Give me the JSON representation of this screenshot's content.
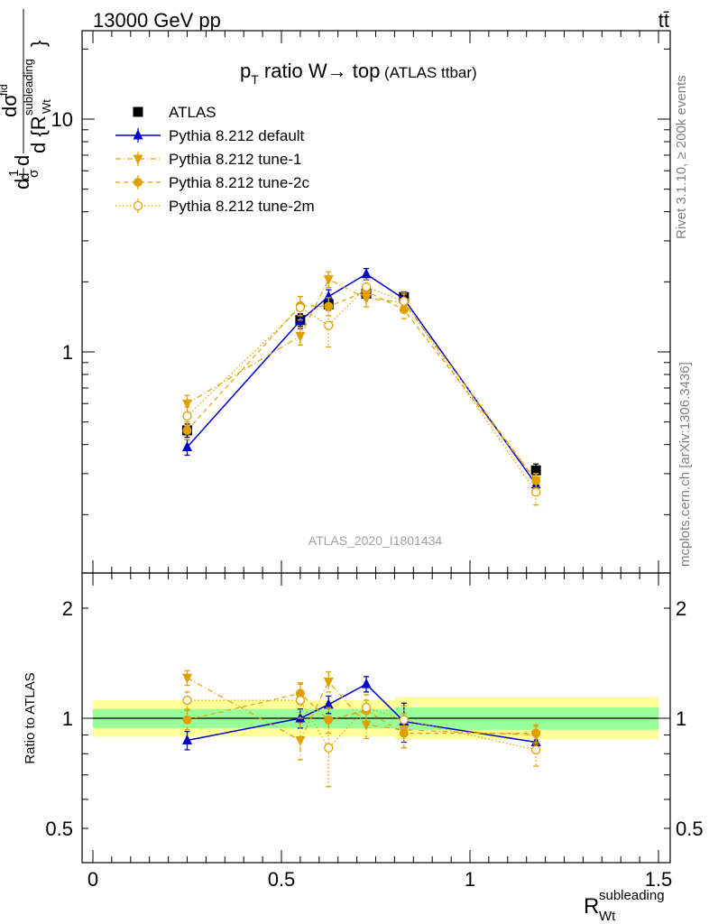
{
  "header": {
    "left": "13000 GeV pp",
    "right": "tt̄"
  },
  "title": {
    "pt": "p",
    "pt_sub": "T",
    "main": " ratio W",
    "arrow": "→",
    "tail": " top",
    "small": " (ATLAS ttbar)"
  },
  "side_labels": {
    "rivet": "Rivet 3.1.10, ≥ 200k events",
    "mcplots": "mcplots.cern.ch [arXiv:1306.3436]"
  },
  "analysis_id": "ATLAS_2020_I1801434",
  "y_label_main": {
    "frac": "d1/σdσ/d{R_Wt^subleading}",
    "parts": [
      "1",
      "σ",
      "dσ",
      "fid",
      "d {R",
      "subleading",
      "Wt",
      "}"
    ]
  },
  "y_label_ratio": "Ratio to ATLAS",
  "x_label": {
    "R": "R",
    "sup": "subleading",
    "sub": "Wt"
  },
  "colors": {
    "data": "#000000",
    "default": "#0000cc",
    "mc": "#e0a000",
    "band_inner": "#99ff99",
    "band_outer": "#ffff99"
  },
  "chart_data": [
    {
      "type": "line",
      "panel": "main",
      "y_scale": "log",
      "ylim": [
        0.18,
        25
      ],
      "xlim": [
        -0.03,
        1.53
      ],
      "y_ticks": [
        {
          "value": 1,
          "label": "1"
        },
        {
          "value": 10,
          "label": "10"
        }
      ],
      "x": [
        0.25,
        0.55,
        0.625,
        0.725,
        0.825,
        1.175
      ],
      "series": [
        {
          "name": "ATLAS",
          "style": "data",
          "marker": "square",
          "values": [
            0.46,
            1.37,
            1.6,
            1.78,
            1.72,
            0.31
          ],
          "errors": [
            0.03,
            0.08,
            0.09,
            0.09,
            0.09,
            0.02
          ]
        },
        {
          "name": "Pythia 8.212 default",
          "style": "default",
          "marker": "triangle-up",
          "values": [
            0.39,
            1.36,
            1.73,
            2.16,
            1.69,
            0.27
          ],
          "errors": [
            0.03,
            0.1,
            0.12,
            0.12,
            0.12,
            0.02
          ]
        },
        {
          "name": "Pythia 8.212 tune-1",
          "style": "dashdot",
          "marker": "triangle-down",
          "values": [
            0.6,
            1.17,
            2.05,
            1.7,
            1.63,
            0.28
          ],
          "errors": [
            0.05,
            0.1,
            0.16,
            0.14,
            0.14,
            0.02
          ]
        },
        {
          "name": "Pythia 8.212 tune-2c",
          "style": "dashed",
          "marker": "circle-filled",
          "values": [
            0.46,
            1.58,
            1.57,
            1.82,
            1.52,
            0.28
          ],
          "errors": [
            0.04,
            0.15,
            0.14,
            0.14,
            0.13,
            0.02
          ]
        },
        {
          "name": "Pythia 8.212 tune-2m",
          "style": "dotted",
          "marker": "circle-open",
          "values": [
            0.53,
            1.55,
            1.3,
            1.9,
            1.65,
            0.25
          ],
          "errors": [
            0.05,
            0.18,
            0.25,
            0.15,
            0.15,
            0.03
          ]
        }
      ]
    },
    {
      "type": "line",
      "panel": "ratio",
      "y_scale": "log",
      "ylim": [
        0.42,
        2.4
      ],
      "xlim": [
        -0.03,
        1.53
      ],
      "y_ticks": [
        {
          "value": 0.5,
          "label": "0.5"
        },
        {
          "value": 1,
          "label": "1"
        },
        {
          "value": 2,
          "label": "2"
        }
      ],
      "x_ticks": [
        {
          "value": 0,
          "label": "0"
        },
        {
          "value": 0.5,
          "label": "0.5"
        },
        {
          "value": 1,
          "label": "1"
        },
        {
          "value": 1.5,
          "label": "1.5"
        }
      ],
      "bands": [
        {
          "from": 0,
          "to": 0.8,
          "inner": [
            0.94,
            1.06
          ],
          "outer": [
            0.89,
            1.12
          ]
        },
        {
          "from": 0.8,
          "to": 1.5,
          "inner": [
            0.93,
            1.07
          ],
          "outer": [
            0.875,
            1.14
          ]
        }
      ],
      "x": [
        0.25,
        0.55,
        0.625,
        0.725,
        0.825,
        1.175
      ],
      "series": [
        {
          "name": "Pythia 8.212 default",
          "style": "default",
          "marker": "triangle-up",
          "values": [
            0.87,
            1.0,
            1.09,
            1.24,
            0.98,
            0.86
          ],
          "errors": [
            0.05,
            0.06,
            0.06,
            0.06,
            0.12,
            0.05
          ]
        },
        {
          "name": "Pythia 8.212 tune-1",
          "style": "dashdot",
          "marker": "triangle-down",
          "values": [
            1.29,
            0.87,
            1.26,
            0.96,
            0.93,
            0.9
          ],
          "errors": [
            0.06,
            0.1,
            0.08,
            0.08,
            0.1,
            0.05
          ]
        },
        {
          "name": "Pythia 8.212 tune-2c",
          "style": "dashed",
          "marker": "circle-filled",
          "values": [
            0.99,
            1.17,
            0.99,
            1.05,
            0.91,
            0.91
          ],
          "errors": [
            0.06,
            0.08,
            0.08,
            0.07,
            0.08,
            0.05
          ]
        },
        {
          "name": "Pythia 8.212 tune-2m",
          "style": "dotted",
          "marker": "circle-open",
          "values": [
            1.12,
            1.12,
            0.83,
            1.07,
            0.99,
            0.82
          ],
          "errors": [
            0.06,
            0.12,
            0.18,
            0.09,
            0.09,
            0.08
          ]
        }
      ]
    }
  ]
}
